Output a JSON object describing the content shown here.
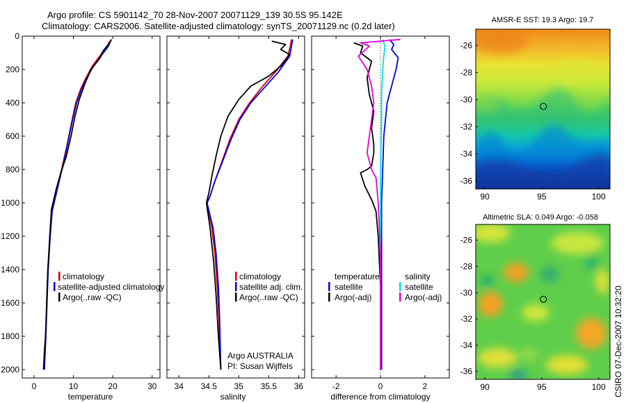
{
  "header": {
    "line1": "Argo profile: CS 5901142_70 28-Nov-2007 20071129_139 30.5S 95.142E",
    "line2": "Climatology: CARS2006. Satellite-adjusted climatology: synTS_20071129.nc (0.2d later)"
  },
  "credit": {
    "institution": "Argo AUSTRALIA",
    "pi": "PI: Susan Wijffels",
    "stamp": "CSIRO 07-Dec-2007 10:32:20"
  },
  "chart_data": [
    {
      "id": "temperature",
      "type": "line",
      "xlabel": "temperature",
      "ylabel": "",
      "xlim": [
        -3,
        32
      ],
      "ylim": [
        2050,
        0
      ],
      "xticks": [
        0,
        10,
        20,
        30
      ],
      "yticks": [
        0,
        200,
        400,
        600,
        800,
        1000,
        1200,
        1400,
        1600,
        1800,
        2000
      ],
      "legend": [
        "climatology",
        "satellite-adjusted climatology",
        "Argo(..raw -QC)"
      ],
      "legend_position": "lower-right",
      "series": [
        {
          "name": "climatology",
          "color": "#d40000",
          "x": [
            19.2,
            18.6,
            17.0,
            14.8,
            13.2,
            11.8,
            10.6,
            9.7,
            8.4,
            7.0,
            5.8,
            4.5,
            4.0,
            3.5,
            3.2,
            3.0,
            2.8,
            2.6
          ],
          "y": [
            30,
            60,
            110,
            180,
            250,
            320,
            400,
            500,
            650,
            800,
            920,
            1050,
            1200,
            1400,
            1600,
            1800,
            1900,
            2000
          ]
        },
        {
          "name": "satellite-adjusted climatology",
          "color": "#0000e0",
          "x": [
            19.6,
            18.9,
            17.3,
            15.1,
            13.4,
            12.0,
            10.8,
            9.8,
            8.5,
            7.1,
            5.9,
            4.6,
            4.1,
            3.6,
            3.3,
            3.0,
            2.8,
            2.6
          ],
          "y": [
            20,
            60,
            110,
            180,
            250,
            320,
            400,
            500,
            650,
            800,
            920,
            1050,
            1200,
            1400,
            1600,
            1800,
            1900,
            2000
          ]
        },
        {
          "name": "Argo(..raw -QC)",
          "color": "#000000",
          "x": [
            19.7,
            19.2,
            17.5,
            16.8,
            14.5,
            13.0,
            11.5,
            10.4,
            9.4,
            8.2,
            6.8,
            5.6,
            4.4,
            4.0,
            3.5,
            3.2,
            2.9,
            2.6,
            2.4
          ],
          "y": [
            20,
            40,
            90,
            130,
            200,
            280,
            380,
            480,
            600,
            720,
            820,
            920,
            1040,
            1200,
            1400,
            1600,
            1800,
            1900,
            2000
          ]
        }
      ]
    },
    {
      "id": "salinity",
      "type": "line",
      "xlabel": "salinity",
      "ylabel": "",
      "xlim": [
        33.8,
        36.1
      ],
      "ylim": [
        2050,
        0
      ],
      "xticks": [
        34,
        34.5,
        35,
        35.5,
        36
      ],
      "legend": [
        "climatology",
        "satellite adj. clim.",
        "Argo(..raw -QC)"
      ],
      "legend_position": "lower-right",
      "series": [
        {
          "name": "climatology",
          "color": "#d40000",
          "x": [
            35.88,
            35.86,
            35.82,
            35.6,
            35.4,
            35.18,
            35.0,
            34.85,
            34.72,
            34.6,
            34.52,
            34.47,
            34.55,
            34.6,
            34.64,
            34.67,
            34.68,
            34.7
          ],
          "y": [
            20,
            60,
            120,
            220,
            300,
            400,
            500,
            620,
            750,
            870,
            960,
            1000,
            1150,
            1300,
            1500,
            1700,
            1850,
            2000
          ]
        },
        {
          "name": "satellite adj. clim.",
          "color": "#0000e0",
          "x": [
            35.9,
            35.88,
            35.85,
            35.65,
            35.45,
            35.2,
            35.02,
            34.87,
            34.73,
            34.6,
            34.52,
            34.47,
            34.57,
            34.62,
            34.66,
            34.68,
            34.69,
            34.7
          ],
          "y": [
            20,
            60,
            120,
            220,
            300,
            400,
            500,
            620,
            750,
            870,
            960,
            1000,
            1150,
            1300,
            1500,
            1700,
            1850,
            2000
          ]
        },
        {
          "name": "Argo(..raw -QC)",
          "color": "#000000",
          "x": [
            35.55,
            35.78,
            35.7,
            35.85,
            35.7,
            35.5,
            35.2,
            35.0,
            34.82,
            34.7,
            34.62,
            34.55,
            34.5,
            34.46,
            34.52,
            34.58,
            34.62,
            34.66,
            34.7
          ],
          "y": [
            30,
            50,
            80,
            110,
            180,
            240,
            300,
            380,
            480,
            600,
            720,
            840,
            940,
            1000,
            1150,
            1350,
            1550,
            1800,
            2000
          ]
        }
      ]
    },
    {
      "id": "difference",
      "type": "line",
      "xlabel": "difference from climatology",
      "ylabel": "",
      "xlim": [
        -3.1,
        3.1
      ],
      "ylim": [
        2050,
        0
      ],
      "xticks": [
        -2,
        0,
        2
      ],
      "legend_groups": [
        {
          "title": "temperature",
          "entries": [
            "satellite",
            "Argo(-adj)"
          ]
        },
        {
          "title": "salinity",
          "entries": [
            "satellite",
            "Argo(-adj)"
          ]
        }
      ],
      "legend_position": "lower-center",
      "series": [
        {
          "name": "temperature satellite",
          "color": "#0000e0",
          "x": [
            0.4,
            0.6,
            0.5,
            0.8,
            0.7,
            0.5,
            0.3,
            0.15,
            0.1,
            0.05,
            0.05,
            0.05,
            0.05
          ],
          "y": [
            20,
            50,
            80,
            130,
            200,
            300,
            400,
            600,
            800,
            1000,
            1400,
            1800,
            2000
          ]
        },
        {
          "name": "temperature Argo(-adj)",
          "color": "#000000",
          "x": [
            -1.2,
            -0.8,
            -0.9,
            -0.4,
            -0.6,
            -0.5,
            -0.3,
            -0.4,
            -0.3,
            -0.3,
            -0.4,
            -0.6,
            -0.9,
            -0.7,
            -0.4,
            -0.2,
            -0.1,
            0.0,
            0.0
          ],
          "y": [
            40,
            60,
            100,
            150,
            250,
            350,
            450,
            550,
            650,
            700,
            780,
            800,
            820,
            900,
            980,
            1050,
            1200,
            1500,
            2000
          ]
        },
        {
          "name": "salinity satellite",
          "color": "#00e0e0",
          "x": [
            0.1,
            0.2,
            0.15,
            0.1,
            0.05,
            0.05,
            0.02,
            0.0,
            0.0,
            0.0,
            0.0
          ],
          "y": [
            20,
            60,
            120,
            200,
            350,
            500,
            700,
            900,
            1200,
            1600,
            2000
          ]
        },
        {
          "name": "salinity Argo(-adj)",
          "color": "#e000e0",
          "x": [
            0.9,
            -0.9,
            -0.5,
            -1.0,
            -0.6,
            -0.4,
            -0.3,
            -0.4,
            -0.5,
            -0.6,
            -0.4,
            -0.2,
            -0.1,
            0.0,
            0.0
          ],
          "y": [
            20,
            40,
            60,
            120,
            200,
            300,
            400,
            500,
            600,
            700,
            800,
            850,
            1000,
            1300,
            2000
          ]
        }
      ]
    },
    {
      "id": "sst_map",
      "type": "heatmap",
      "title": "AMSR-E SST: 19.3 Argo: 19.7",
      "xlim": [
        89.2,
        101
      ],
      "ylim": [
        -36.6,
        -24.8
      ],
      "xticks": [
        90,
        95,
        100
      ],
      "yticks": [
        -26,
        -28,
        -30,
        -32,
        -34,
        -36
      ],
      "colormap": "jet",
      "marker": {
        "lon": 95.142,
        "lat": -30.5
      }
    },
    {
      "id": "sla_map",
      "type": "heatmap",
      "title": "Altimetric SLA: 0.049 Argo: -0.058",
      "xlim": [
        89.2,
        101
      ],
      "ylim": [
        -36.6,
        -24.8
      ],
      "xticks": [
        90,
        95,
        100
      ],
      "yticks": [
        -26,
        -28,
        -30,
        -32,
        -34,
        -36
      ],
      "colormap": "jet",
      "marker": {
        "lon": 95.142,
        "lat": -30.5
      }
    }
  ]
}
